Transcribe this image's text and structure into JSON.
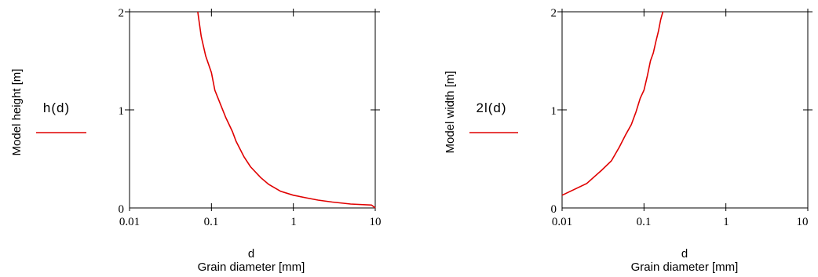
{
  "chart_data": [
    {
      "type": "line",
      "ylabel": "Model height [m]",
      "xlabel_var": "d",
      "xlabel": "Grain diameter [mm]",
      "xscale": "log",
      "xlim": [
        0.01,
        10
      ],
      "ylim": [
        0,
        2
      ],
      "xticks": [
        "0.01",
        "0.1",
        "1",
        "10"
      ],
      "yticks": [
        "0",
        "1",
        "2"
      ],
      "color": "#e00000",
      "legend": {
        "label": "h(d)",
        "placement": "left"
      },
      "series": [
        {
          "name": "h(d)",
          "x": [
            0.068,
            0.075,
            0.085,
            0.1,
            0.11,
            0.13,
            0.15,
            0.18,
            0.2,
            0.25,
            0.3,
            0.4,
            0.5,
            0.7,
            1.0,
            1.5,
            2.0,
            3.0,
            5.0,
            9.0,
            10.0
          ],
          "y": [
            2.0,
            1.75,
            1.55,
            1.38,
            1.2,
            1.05,
            0.92,
            0.78,
            0.68,
            0.52,
            0.42,
            0.31,
            0.24,
            0.17,
            0.13,
            0.1,
            0.08,
            0.06,
            0.04,
            0.03,
            0.0
          ]
        }
      ]
    },
    {
      "type": "line",
      "ylabel": "Model width [m]",
      "xlabel_var": "d",
      "xlabel": "Grain diameter [mm]",
      "xscale": "log",
      "xlim": [
        0.01,
        10
      ],
      "ylim": [
        0,
        2
      ],
      "xticks": [
        "0.01",
        "0.1",
        "1",
        "10"
      ],
      "yticks": [
        "0",
        "1",
        "2"
      ],
      "color": "#e00000",
      "legend": {
        "label": "2l(d)",
        "placement": "left"
      },
      "series": [
        {
          "name": "2l(d)",
          "x": [
            0.01,
            0.02,
            0.03,
            0.04,
            0.05,
            0.06,
            0.07,
            0.08,
            0.09,
            0.1,
            0.11,
            0.12,
            0.13,
            0.14,
            0.15,
            0.16,
            0.17
          ],
          "y": [
            0.13,
            0.25,
            0.38,
            0.48,
            0.62,
            0.75,
            0.85,
            0.98,
            1.12,
            1.2,
            1.35,
            1.5,
            1.58,
            1.7,
            1.8,
            1.92,
            2.0
          ]
        }
      ]
    }
  ]
}
